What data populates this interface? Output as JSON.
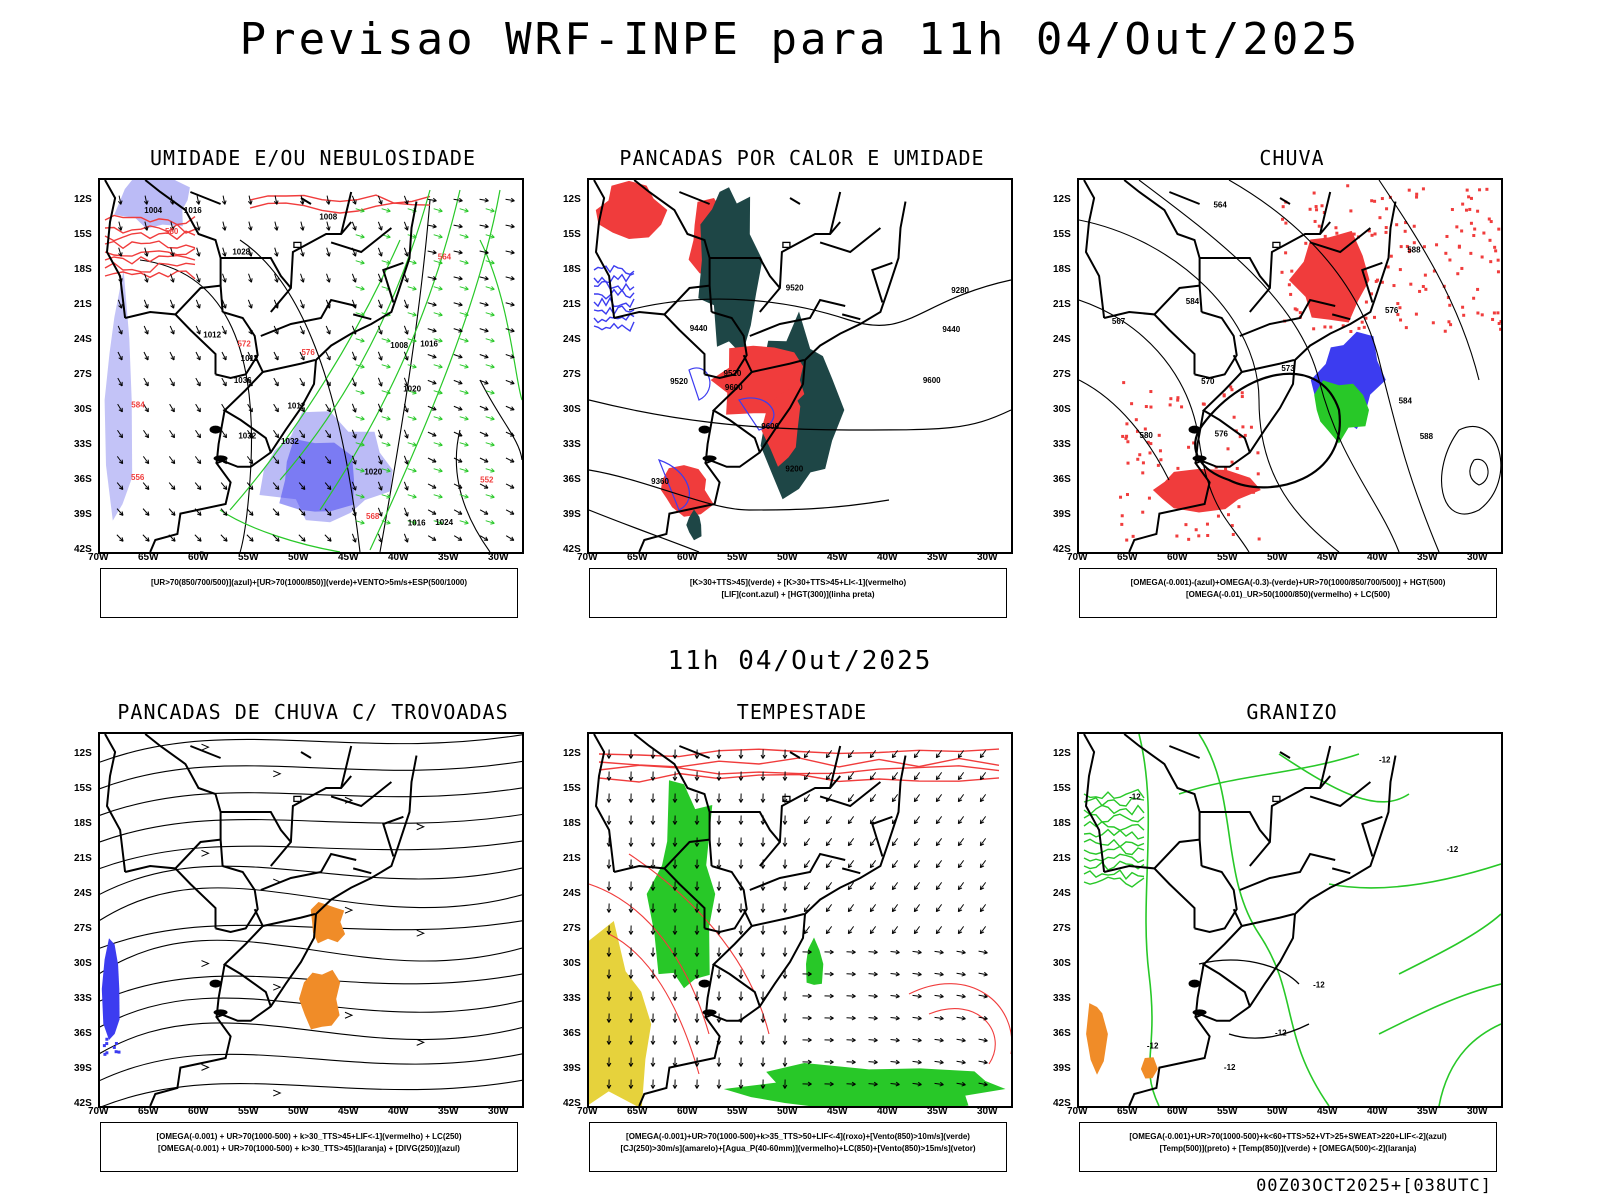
{
  "title": "Previsao WRF-INPE  para 11h 04/Out/2025",
  "subtitle": "11h 04/Out/2025",
  "footer": "00Z03OCT2025+[038UTC]",
  "lat_labels": [
    "12S",
    "15S",
    "18S",
    "21S",
    "24S",
    "27S",
    "30S",
    "33S",
    "36S",
    "39S",
    "42S"
  ],
  "lon_labels": [
    "70W",
    "65W",
    "60W",
    "55W",
    "50W",
    "45W",
    "40W",
    "35W",
    "30W"
  ],
  "colors": {
    "red": "#f03c3c",
    "blue": "#3c3cf0",
    "green": "#28c828",
    "light_blue": "#b4b4f5",
    "dark_green": "#1e4646",
    "orange": "#f08c28",
    "yellow": "#e6d23c"
  },
  "panels": [
    {
      "title": "UMIDADE E/OU NEBULOSIDADE",
      "legend": [
        "[UR>70(850/700/500)](azul)+[UR>70(1000/850)](verde)+VENTO>5m/s+ESP(500/1000)"
      ],
      "contour_labels": [
        "1012",
        "1012",
        "1016",
        "1020",
        "1024",
        "1028",
        "1032",
        "1036",
        "1032",
        "1008",
        "1016",
        "1008",
        "1004",
        "1016",
        "1012",
        "1020",
        "576",
        "584",
        "580",
        "572",
        "568",
        "564",
        "556",
        "552"
      ]
    },
    {
      "title": "PANCADAS POR CALOR E UMIDADE",
      "legend": [
        "[K>30+TTS>45](verde) + [K>30+TTS>45+LI<-1](vermelho)",
        "[LIF](cont.azul) + [HGT(300)](linha preta)"
      ],
      "contour_labels": [
        "9600",
        "9600",
        "9600",
        "9520",
        "9520",
        "9520",
        "9440",
        "9360",
        "9280",
        "9440",
        "9200"
      ]
    },
    {
      "title": "CHUVA",
      "legend": [
        "[OMEGA(-0.001)-(azul)+OMEGA(-0.3)-(verde)+UR>70(1000/850/700/500)] + HGT(500)",
        "[OMEGA(-0.01)_UR>50(1000/850)(vermelho) + LC(500)"
      ],
      "contour_labels": [
        "588",
        "588",
        "584",
        "584",
        "576",
        "576",
        "580",
        "573",
        "570",
        "567",
        "564"
      ]
    },
    {
      "title": "PANCADAS DE CHUVA C/ TROVOADAS",
      "legend": [
        "[OMEGA(-0.001) + UR>70(1000-500) + k>30_TTS>45+LIF<-1](vermelho) + LC(250)",
        "[OMEGA(-0.001) + UR>70(1000-500) + k>30_TTS>45](laranja) + [DIVG(250)](azul)"
      ],
      "contour_labels": []
    },
    {
      "title": "TEMPESTADE",
      "legend": [
        "[OMEGA(-0.001)+UR>70(1000-500)+k>35_TTS>50+LIF<-4](roxo)+[Vento(850)>10m/s](verde)",
        "[CJ(250)>30m/s](amarelo)+[Agua_P(40-60mm)](vermelho)+LC(850)+[Vento(850)>15m/s](vetor)"
      ],
      "contour_labels": []
    },
    {
      "title": "GRANIZO",
      "legend": [
        "[OMEGA(-0.001)+UR>70(1000-500)+k<60+TTS>52+VT>25+SWEAT>220+LIF<-2](azul)",
        "[Temp(500)](preto) + [Temp(850)](verde) + [OMEGA(500)<-2](laranja)"
      ],
      "contour_labels": [
        "-12",
        "-12",
        "-12",
        "-12",
        "-12",
        "-12",
        "-12"
      ]
    }
  ]
}
